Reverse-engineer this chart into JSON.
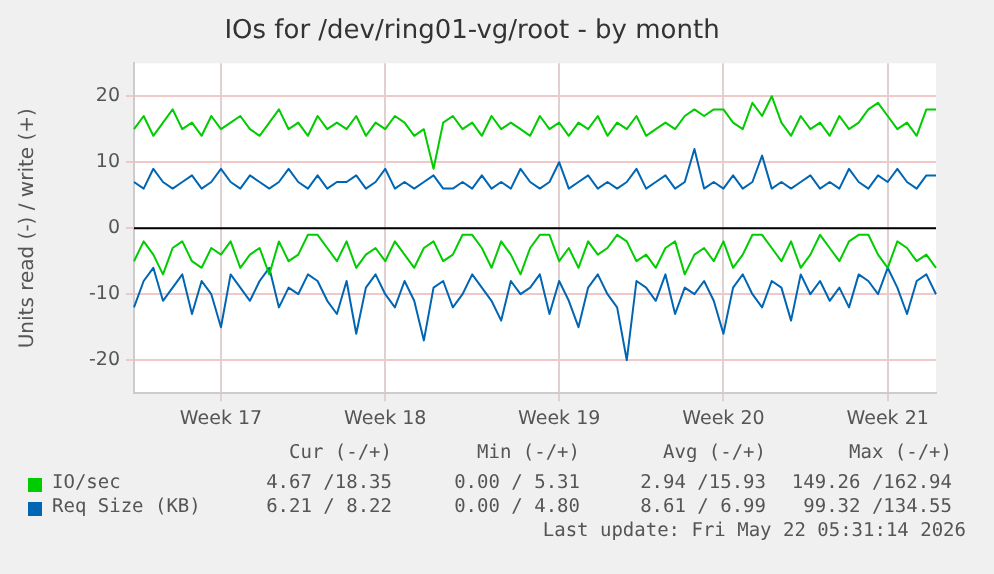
{
  "chart_data": {
    "type": "line",
    "title": "IOs for /dev/ring01-vg/root - by month",
    "ylabel": "Units read (-) / write (+)",
    "categories": [
      null,
      null,
      null,
      null,
      null,
      null,
      null,
      null,
      null,
      "Week 17",
      null,
      null,
      null,
      null,
      null,
      null,
      null,
      null,
      null,
      null,
      null,
      null,
      null,
      null,
      null,
      null,
      "Week 18",
      null,
      null,
      null,
      null,
      null,
      null,
      null,
      null,
      null,
      null,
      null,
      null,
      null,
      null,
      null,
      null,
      null,
      "Week 19",
      null,
      null,
      null,
      null,
      null,
      null,
      null,
      null,
      null,
      null,
      null,
      null,
      null,
      null,
      null,
      null,
      "Week 20",
      null,
      null,
      null,
      null,
      null,
      null,
      null,
      null,
      null,
      null,
      null,
      null,
      null,
      null,
      null,
      null,
      "Week 21",
      null,
      null,
      null,
      null,
      null
    ],
    "ylim": [
      -25,
      25
    ],
    "yticks": [
      -20,
      -10,
      0,
      10,
      20
    ],
    "grid": true,
    "legend": "bottom",
    "marker": "none",
    "line_style": "solid",
    "ref_lines": [
      {
        "axis": "y",
        "value": 0,
        "color": "#000000"
      }
    ],
    "series": [
      {
        "name": "IO/sec",
        "color": "#00cc00",
        "values": [
          15,
          17,
          14,
          16,
          18,
          15,
          16,
          14,
          17,
          15,
          16,
          17,
          15,
          14,
          16,
          18,
          15,
          16,
          14,
          17,
          15,
          16,
          15,
          17,
          14,
          16,
          15,
          17,
          16,
          14,
          15,
          9,
          16,
          17,
          15,
          16,
          14,
          17,
          15,
          16,
          15,
          14,
          17,
          15,
          16,
          14,
          16,
          15,
          17,
          14,
          16,
          15,
          17,
          14,
          15,
          16,
          15,
          17,
          18,
          17,
          18,
          18,
          16,
          15,
          19,
          17,
          20,
          16,
          14,
          17,
          15,
          16,
          14,
          17,
          15,
          16,
          18,
          19,
          17,
          15,
          16,
          14,
          18,
          18
        ]
      },
      {
        "color": "#00cc00",
        "values": [
          -5,
          -2,
          -4,
          -7,
          -3,
          -2,
          -5,
          -6,
          -3,
          -4,
          -2,
          -6,
          -4,
          -3,
          -7,
          -2,
          -5,
          -4,
          -1,
          -1,
          -3,
          -5,
          -2,
          -6,
          -4,
          -3,
          -5,
          -2,
          -4,
          -6,
          -3,
          -2,
          -5,
          -4,
          -1,
          -1,
          -3,
          -6,
          -2,
          -4,
          -7,
          -3,
          -1,
          -1,
          -5,
          -3,
          -6,
          -2,
          -4,
          -3,
          -1,
          -2,
          -5,
          -4,
          -6,
          -3,
          -2,
          -7,
          -4,
          -3,
          -5,
          -2,
          -6,
          -4,
          -1,
          -1,
          -3,
          -5,
          -2,
          -6,
          -4,
          -1,
          -3,
          -5,
          -2,
          -1,
          -1,
          -4,
          -6,
          -2,
          -3,
          -5,
          -4,
          -6
        ]
      },
      {
        "name": "Req Size (KB)",
        "color": "#0066b3",
        "values": [
          7,
          6,
          9,
          7,
          6,
          7,
          8,
          6,
          7,
          9,
          7,
          6,
          8,
          7,
          6,
          7,
          9,
          7,
          6,
          8,
          6,
          7,
          7,
          8,
          6,
          7,
          9,
          6,
          7,
          6,
          7,
          8,
          6,
          6,
          7,
          6,
          8,
          6,
          7,
          6,
          9,
          7,
          6,
          7,
          10,
          6,
          7,
          8,
          6,
          7,
          6,
          7,
          9,
          6,
          7,
          8,
          6,
          7,
          12,
          6,
          7,
          6,
          8,
          6,
          7,
          11,
          6,
          7,
          6,
          7,
          8,
          6,
          7,
          6,
          9,
          7,
          6,
          8,
          7,
          9,
          7,
          6,
          8,
          8
        ]
      },
      {
        "color": "#0066b3",
        "values": [
          -12,
          -8,
          -6,
          -11,
          -9,
          -7,
          -13,
          -8,
          -10,
          -15,
          -7,
          -9,
          -11,
          -8,
          -6,
          -12,
          -9,
          -10,
          -7,
          -8,
          -11,
          -13,
          -8,
          -16,
          -9,
          -7,
          -10,
          -12,
          -8,
          -11,
          -17,
          -9,
          -8,
          -12,
          -10,
          -7,
          -9,
          -11,
          -14,
          -8,
          -10,
          -9,
          -7,
          -13,
          -8,
          -11,
          -15,
          -9,
          -7,
          -10,
          -12,
          -20,
          -8,
          -9,
          -11,
          -7,
          -13,
          -9,
          -10,
          -8,
          -11,
          -16,
          -9,
          -7,
          -10,
          -12,
          -8,
          -9,
          -14,
          -7,
          -10,
          -8,
          -11,
          -9,
          -12,
          -7,
          -8,
          -10,
          -6,
          -9,
          -13,
          -8,
          -7,
          -10
        ]
      }
    ],
    "annotations": [
      "Cur (-/+)",
      "Min (-/+)",
      "Avg (-/+)",
      "Max (-/+)",
      "4.67 /18.35",
      "0.00 / 5.31",
      "2.94 /15.93",
      "149.26 /162.94",
      "6.21 / 8.22",
      "0.00 / 4.80",
      "8.61 / 6.99",
      "99.32 /134.55",
      "Last update: Fri May 22 05:31:14 2026"
    ]
  }
}
